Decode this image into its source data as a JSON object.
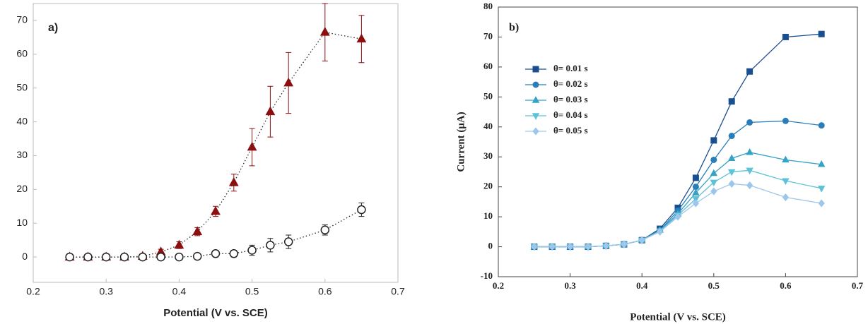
{
  "chart_data": [
    {
      "type": "line",
      "panel_label": "a)",
      "x_label": "Potential (V vs. SCE)",
      "x": [
        0.25,
        0.275,
        0.3,
        0.325,
        0.35,
        0.375,
        0.4,
        0.425,
        0.45,
        0.475,
        0.5,
        0.525,
        0.55,
        0.6,
        0.65
      ],
      "xlim": [
        0.2,
        0.7
      ],
      "xticks": [
        0.2,
        0.3,
        0.4,
        0.5,
        0.6,
        0.7
      ],
      "ylim": [
        -7.5,
        75
      ],
      "yticks": [
        0,
        10,
        20,
        30,
        40,
        50,
        60,
        70
      ],
      "series": [
        {
          "color": "#8b0f0f",
          "marker": "triangle",
          "filled": true,
          "linestyle": "dotted",
          "values": [
            0,
            0,
            0,
            0,
            0.2,
            1.5,
            3.5,
            7.5,
            13.5,
            22,
            32.5,
            43,
            51.5,
            66.5,
            64.5
          ],
          "errors": [
            0.5,
            0.5,
            0.5,
            0.5,
            0.5,
            0.8,
            1,
            1.2,
            1.5,
            2.5,
            5.5,
            7.5,
            9,
            8.5,
            7
          ]
        },
        {
          "color": "#222222",
          "marker": "circle",
          "filled": false,
          "linestyle": "dotted",
          "values": [
            0,
            0,
            0,
            0,
            0,
            0,
            0,
            0.2,
            1,
            1,
            2,
            3.5,
            4.5,
            8,
            14
          ],
          "errors": [
            0.5,
            0.5,
            0.5,
            0.5,
            0.5,
            0.5,
            0.5,
            0.8,
            1,
            1,
            1.5,
            2,
            2,
            1.5,
            2
          ]
        }
      ]
    },
    {
      "type": "line",
      "panel_label": "b)",
      "x_label": "Potential (V vs. SCE)",
      "y_label": "Current (μA)",
      "x": [
        0.25,
        0.275,
        0.3,
        0.325,
        0.35,
        0.375,
        0.4,
        0.425,
        0.45,
        0.475,
        0.5,
        0.525,
        0.55,
        0.6,
        0.65
      ],
      "xlim": [
        0.2,
        0.7
      ],
      "xticks": [
        0.2,
        0.3,
        0.4,
        0.5,
        0.6,
        0.7
      ],
      "ylim": [
        -10,
        80
      ],
      "yticks": [
        -10,
        0,
        10,
        20,
        30,
        40,
        50,
        60,
        70,
        80
      ],
      "legend": "upper left",
      "series": [
        {
          "name": "θ= 0.01 s",
          "color": "#1a4f8f",
          "marker": "square",
          "filled": true,
          "linestyle": "solid",
          "values": [
            0,
            0,
            0,
            0,
            0.3,
            0.8,
            2.2,
            6,
            13,
            23,
            35.5,
            48.5,
            58.5,
            70,
            71
          ]
        },
        {
          "name": "θ= 0.02 s",
          "color": "#2a7db9",
          "marker": "circle",
          "filled": true,
          "linestyle": "solid",
          "values": [
            0,
            0,
            0,
            0,
            0.3,
            0.8,
            2.2,
            5.5,
            12,
            20,
            29,
            37,
            41.5,
            42,
            40.5
          ]
        },
        {
          "name": "θ= 0.03 s",
          "color": "#35a2c6",
          "marker": "triangle",
          "filled": true,
          "linestyle": "solid",
          "values": [
            0,
            0,
            0,
            0,
            0.3,
            0.8,
            2.2,
            5.5,
            11,
            18,
            24.5,
            29.5,
            31.5,
            29,
            27.5
          ]
        },
        {
          "name": "θ= 0.04 s",
          "color": "#5ec2d6",
          "marker": "triangle-down",
          "filled": true,
          "linestyle": "solid",
          "values": [
            0,
            0,
            0,
            0,
            0.3,
            0.8,
            2.2,
            5.2,
            10.5,
            16,
            21.5,
            25,
            25.5,
            22,
            19.5
          ]
        },
        {
          "name": "θ= 0.05 s",
          "color": "#9dc6ec",
          "marker": "diamond",
          "filled": true,
          "linestyle": "solid",
          "values": [
            0,
            0,
            0,
            0,
            0.3,
            0.8,
            2.2,
            5,
            10,
            14.5,
            18.5,
            21,
            20.5,
            16.5,
            14.5
          ]
        }
      ]
    }
  ]
}
